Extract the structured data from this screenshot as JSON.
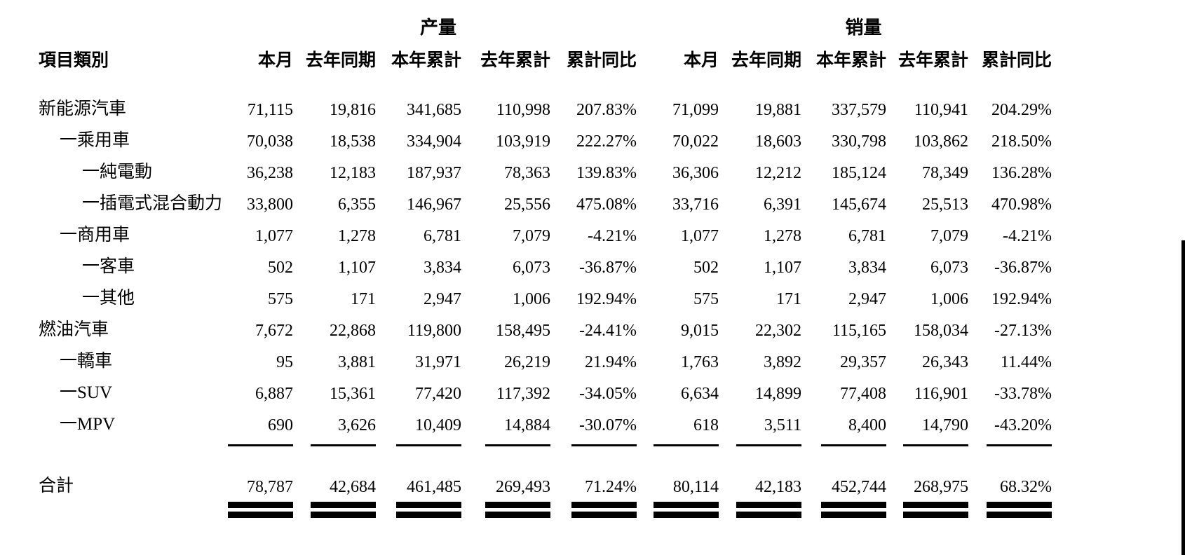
{
  "page": {
    "background_color": "#ffffff",
    "text_color": "#000000",
    "edge_bar_color": "#000000"
  },
  "table": {
    "corner_header": "項目類別",
    "groups": [
      {
        "label": "产量",
        "columns": [
          "本月",
          "去年同期",
          "本年累計",
          "去年累計",
          "累計同比"
        ]
      },
      {
        "label": "销量",
        "columns": [
          "本月",
          "去年同期",
          "本年累計",
          "去年累計",
          "累計同比"
        ]
      }
    ],
    "rows": [
      {
        "label": "新能源汽車",
        "indent": 0,
        "values": [
          "71,115",
          "19,816",
          "341,685",
          "110,998",
          "207.83%",
          "71,099",
          "19,881",
          "337,579",
          "110,941",
          "204.29%"
        ]
      },
      {
        "label": "一乘用車",
        "indent": 1,
        "values": [
          "70,038",
          "18,538",
          "334,904",
          "103,919",
          "222.27%",
          "70,022",
          "18,603",
          "330,798",
          "103,862",
          "218.50%"
        ]
      },
      {
        "label": "一純電動",
        "indent": 2,
        "values": [
          "36,238",
          "12,183",
          "187,937",
          "78,363",
          "139.83%",
          "36,306",
          "12,212",
          "185,124",
          "78,349",
          "136.28%"
        ]
      },
      {
        "label": "一插電式混合動力",
        "indent": 2,
        "values": [
          "33,800",
          "6,355",
          "146,967",
          "25,556",
          "475.08%",
          "33,716",
          "6,391",
          "145,674",
          "25,513",
          "470.98%"
        ]
      },
      {
        "label": "一商用車",
        "indent": 1,
        "values": [
          "1,077",
          "1,278",
          "6,781",
          "7,079",
          "-4.21%",
          "1,077",
          "1,278",
          "6,781",
          "7,079",
          "-4.21%"
        ]
      },
      {
        "label": "一客車",
        "indent": 2,
        "values": [
          "502",
          "1,107",
          "3,834",
          "6,073",
          "-36.87%",
          "502",
          "1,107",
          "3,834",
          "6,073",
          "-36.87%"
        ]
      },
      {
        "label": "一其他",
        "indent": 2,
        "values": [
          "575",
          "171",
          "2,947",
          "1,006",
          "192.94%",
          "575",
          "171",
          "2,947",
          "1,006",
          "192.94%"
        ]
      },
      {
        "label": "燃油汽車",
        "indent": 0,
        "values": [
          "7,672",
          "22,868",
          "119,800",
          "158,495",
          "-24.41%",
          "9,015",
          "22,302",
          "115,165",
          "158,034",
          "-27.13%"
        ]
      },
      {
        "label": "一轎車",
        "indent": 1,
        "values": [
          "95",
          "3,881",
          "31,971",
          "26,219",
          "21.94%",
          "1,763",
          "3,892",
          "29,357",
          "26,343",
          "11.44%"
        ]
      },
      {
        "label": "一SUV",
        "indent": 1,
        "values": [
          "6,887",
          "15,361",
          "77,420",
          "117,392",
          "-34.05%",
          "6,634",
          "14,899",
          "77,408",
          "116,901",
          "-33.78%"
        ]
      },
      {
        "label": "一MPV",
        "indent": 1,
        "values": [
          "690",
          "3,626",
          "10,409",
          "14,884",
          "-30.07%",
          "618",
          "3,511",
          "8,400",
          "14,790",
          "-43.20%"
        ]
      }
    ],
    "total_row": {
      "label": "合計",
      "values": [
        "78,787",
        "42,684",
        "461,485",
        "269,493",
        "71.24%",
        "80,114",
        "42,183",
        "452,744",
        "268,975",
        "68.32%"
      ]
    }
  }
}
